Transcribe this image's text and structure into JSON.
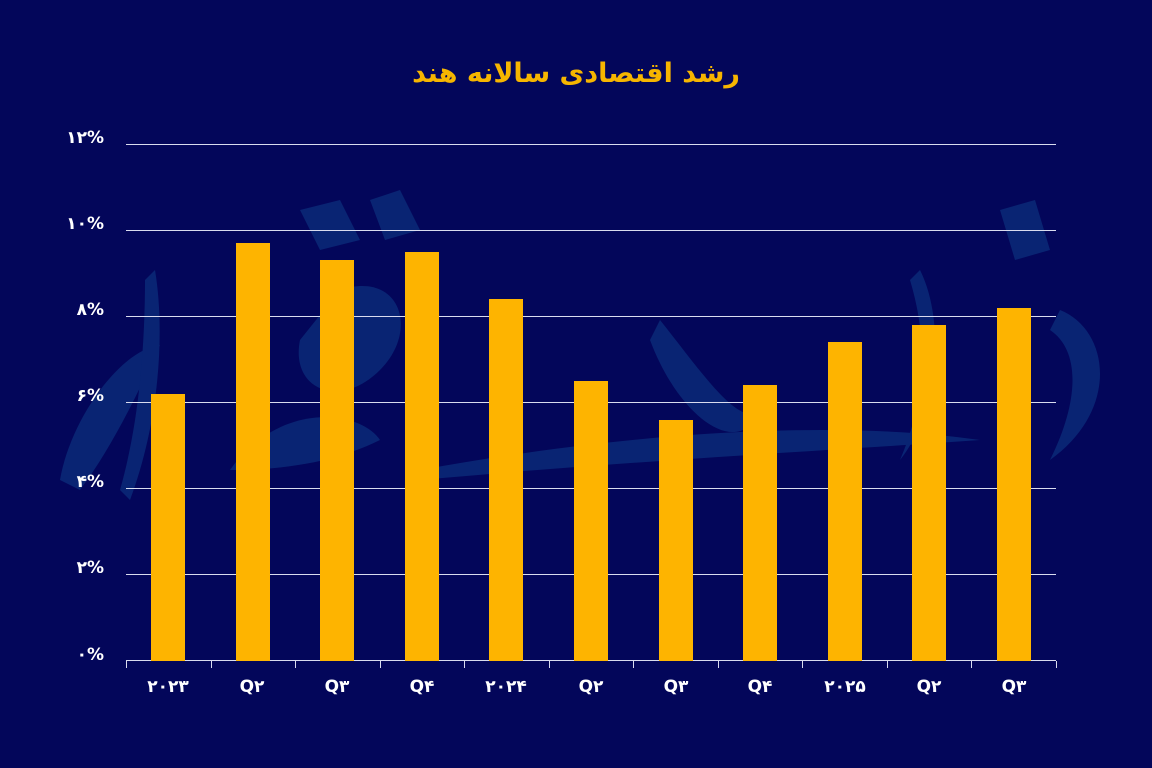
{
  "title": "رشد اقتصادی سالانه هند",
  "colors": {
    "background": "#03065a",
    "bar": "#feb400",
    "title": "#f6b500",
    "gridline": "#d9dcef",
    "watermark": "#0b2a78"
  },
  "y_ticks": [
    "۰%",
    "۲%",
    "۴%",
    "۶%",
    "۸%",
    "۱۰%",
    "۱۲%"
  ],
  "x_labels": [
    "۲۰۲۳",
    "Q۲",
    "Q۳",
    "Q۴",
    "۲۰۲۴",
    "Q۲",
    "Q۳",
    "Q۴",
    "۲۰۲۵",
    "Q۲",
    "Q۳"
  ],
  "chart_data": {
    "type": "bar",
    "title": "رشد اقتصادی سالانه هند",
    "xlabel": "",
    "ylabel": "",
    "categories": [
      "2023 Q1",
      "2023 Q2",
      "2023 Q3",
      "2023 Q4",
      "2024 Q1",
      "2024 Q2",
      "2024 Q3",
      "2024 Q4",
      "2025 Q1",
      "2025 Q2",
      "2025 Q3"
    ],
    "tick_labels": [
      "۲۰۲۳",
      "Q۲",
      "Q۳",
      "Q۴",
      "۲۰۲۴",
      "Q۲",
      "Q۳",
      "Q۴",
      "۲۰۲۵",
      "Q۲",
      "Q۳"
    ],
    "values": [
      6.2,
      9.7,
      9.3,
      9.5,
      8.4,
      6.5,
      5.6,
      6.4,
      7.4,
      7.8,
      8.2
    ],
    "ylim": [
      0,
      12
    ],
    "yticks": [
      0,
      2,
      4,
      6,
      8,
      10,
      12
    ],
    "ytick_format": "percent",
    "grid": true,
    "legend": null
  }
}
